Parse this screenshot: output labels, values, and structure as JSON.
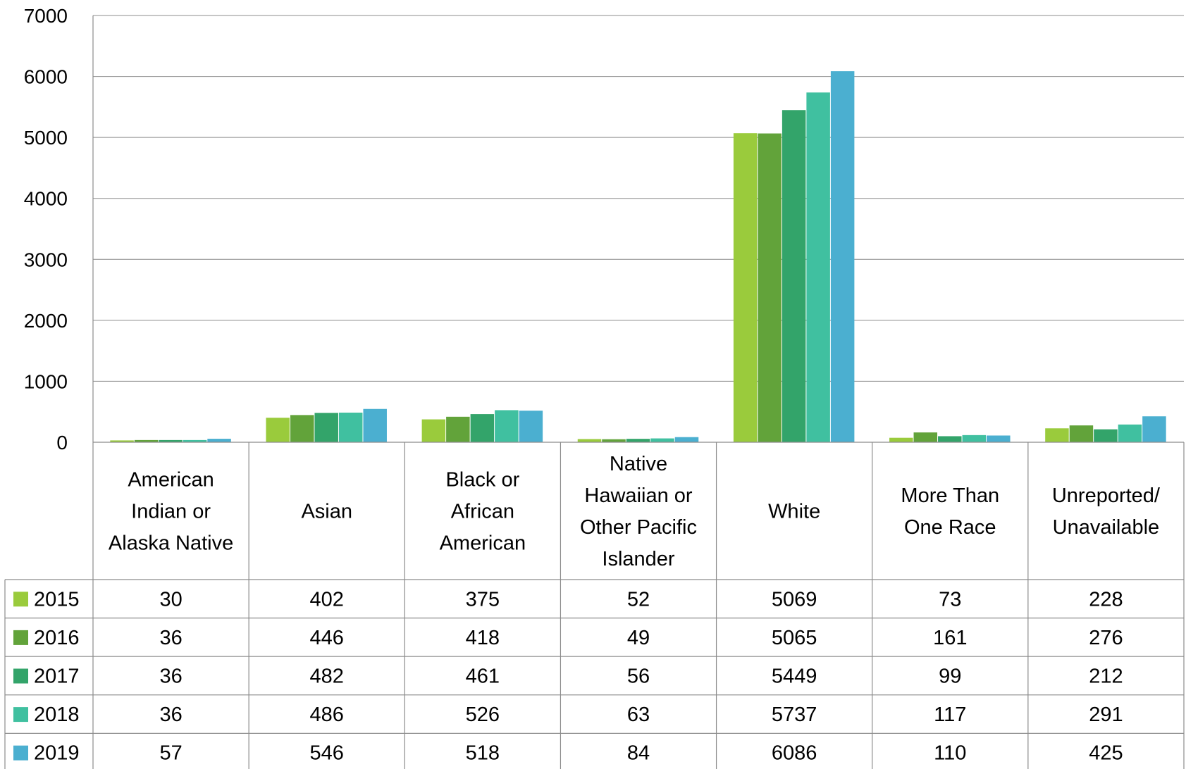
{
  "chart_data": {
    "type": "bar",
    "categories": [
      "American Indian or Alaska Native",
      "Asian",
      "Black or African American",
      "Native Hawaiian or Other Pacific Islander",
      "White",
      "More Than One Race",
      "Unreported/ Unavailable"
    ],
    "category_lines": [
      [
        "American",
        "Indian or",
        "Alaska Native"
      ],
      [
        "Asian"
      ],
      [
        "Black or",
        "African",
        "American"
      ],
      [
        "Native",
        "Hawaiian or",
        "Other Pacific",
        "Islander"
      ],
      [
        "White"
      ],
      [
        "More Than",
        "One Race"
      ],
      [
        "Unreported/",
        "Unavailable"
      ]
    ],
    "series": [
      {
        "name": "2015",
        "color": "#9ACB3C",
        "values": [
          30,
          402,
          375,
          52,
          5069,
          73,
          228
        ]
      },
      {
        "name": "2016",
        "color": "#62A33A",
        "values": [
          36,
          446,
          418,
          49,
          5065,
          161,
          276
        ]
      },
      {
        "name": "2017",
        "color": "#33A46A",
        "values": [
          36,
          482,
          461,
          56,
          5449,
          99,
          212
        ]
      },
      {
        "name": "2018",
        "color": "#40C0A0",
        "values": [
          36,
          486,
          526,
          63,
          5737,
          117,
          291
        ]
      },
      {
        "name": "2019",
        "color": "#4BAFD0",
        "values": [
          57,
          546,
          518,
          84,
          6086,
          110,
          425
        ]
      }
    ],
    "ylim": [
      0,
      7000
    ],
    "yticks": [
      0,
      1000,
      2000,
      3000,
      4000,
      5000,
      6000,
      7000
    ],
    "grid": true,
    "legend": "data-table",
    "title": "",
    "xlabel": "",
    "ylabel": ""
  }
}
